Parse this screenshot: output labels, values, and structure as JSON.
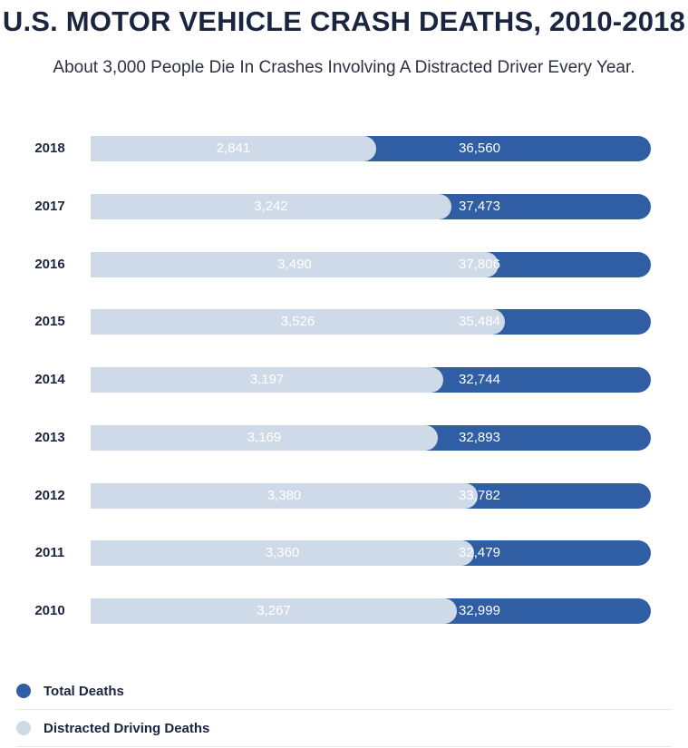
{
  "header": {
    "title": "U.S. MOTOR VEHICLE CRASH DEATHS, 2010-2018",
    "subtitle": "About 3,000 People Die In Crashes Involving A Distracted Driver Every Year."
  },
  "colors": {
    "total": "#2f5ea4",
    "distracted": "#cfdae8"
  },
  "chart_data": {
    "type": "bar",
    "orientation": "horizontal",
    "categories": [
      "2018",
      "2017",
      "2016",
      "2015",
      "2014",
      "2013",
      "2012",
      "2011",
      "2010"
    ],
    "series": [
      {
        "name": "Distracted Driving Deaths",
        "values": [
          2841,
          3242,
          3490,
          3526,
          3197,
          3169,
          3380,
          3360,
          3267
        ],
        "labels": [
          "2,841",
          "3,242",
          "3,490",
          "3,526",
          "3,197",
          "3,169",
          "3,380",
          "3,360",
          "3,267"
        ]
      },
      {
        "name": "Total Deaths",
        "values": [
          36560,
          37473,
          37806,
          35484,
          32744,
          32893,
          33782,
          32479,
          32999
        ],
        "labels": [
          "36,560",
          "37,473",
          "37,806",
          "35,484",
          "32,744",
          "32,893",
          "33,782",
          "32,479",
          "32,999"
        ]
      }
    ],
    "legend": "bottom-left",
    "grid": false
  },
  "legend": {
    "items": [
      {
        "label": "Total Deaths"
      },
      {
        "label": "Distracted Driving Deaths"
      }
    ]
  }
}
